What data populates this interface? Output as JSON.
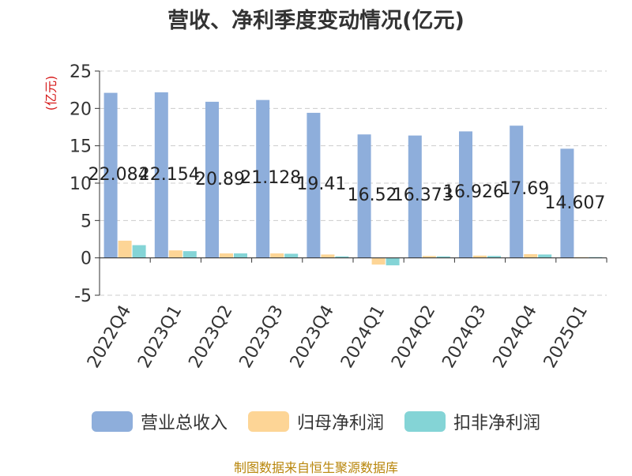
{
  "chart_data": {
    "type": "bar",
    "title": "营收、净利季度变动情况(亿元)",
    "ylabel": "(亿元)",
    "xlabel": "",
    "ylim": [
      -5,
      25
    ],
    "yticks": [
      25,
      20,
      15,
      10,
      5,
      0,
      -5
    ],
    "grid": true,
    "legend_position": "bottom",
    "categories": [
      "2022Q4",
      "2023Q1",
      "2023Q2",
      "2023Q3",
      "2023Q4",
      "2024Q1",
      "2024Q2",
      "2024Q3",
      "2024Q4",
      "2025Q1"
    ],
    "series": [
      {
        "name": "营业总收入",
        "color": "#8eaedb",
        "values": [
          22.084,
          22.154,
          20.89,
          21.128,
          19.41,
          16.52,
          16.373,
          16.926,
          17.69,
          14.607
        ],
        "labels": [
          "22.084",
          "22.154",
          "20.89",
          "21.128",
          "19.41",
          "16.52",
          "16.373",
          "16.926",
          "17.69",
          "14.607"
        ]
      },
      {
        "name": "归母净利润",
        "color": "#fdd596",
        "values": [
          2.3,
          1.0,
          0.6,
          0.6,
          0.45,
          -0.9,
          0.25,
          0.3,
          0.5,
          0.1
        ]
      },
      {
        "name": "扣非净利润",
        "color": "#84d4d6",
        "values": [
          1.7,
          0.9,
          0.6,
          0.55,
          0.2,
          -1.0,
          0.2,
          0.25,
          0.45,
          0.1
        ]
      }
    ]
  },
  "footer": {
    "source": "制图数据来自恒生聚源数据库"
  },
  "colors": {
    "axis": "#333333",
    "grid": "#cccccc",
    "ylabel": "#d61a1a"
  }
}
